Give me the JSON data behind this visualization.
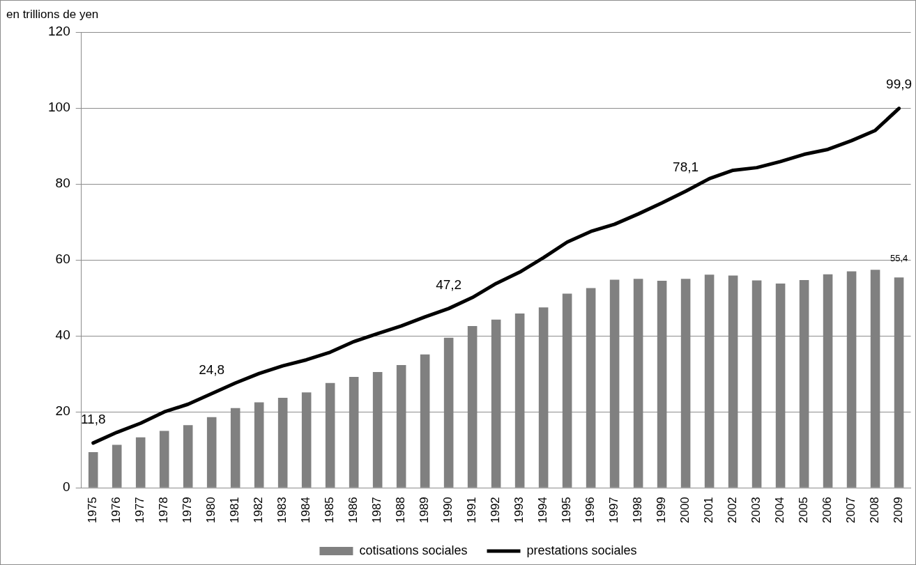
{
  "chart_data": {
    "type": "bar",
    "ylabel": "en trillions de yen",
    "categories": [
      "1975",
      "1976",
      "1977",
      "1978",
      "1979",
      "1980",
      "1981",
      "1982",
      "1983",
      "1984",
      "1985",
      "1986",
      "1987",
      "1988",
      "1989",
      "1990",
      "1991",
      "1992",
      "1993",
      "1994",
      "1995",
      "1996",
      "1997",
      "1998",
      "1999",
      "2000",
      "2001",
      "2002",
      "2003",
      "2004",
      "2005",
      "2006",
      "2007",
      "2008",
      "2009"
    ],
    "series": [
      {
        "name": "cotisations sociales",
        "color": "#808080",
        "values": [
          9.4,
          11.3,
          13.3,
          15.0,
          16.5,
          18.6,
          21.0,
          22.5,
          23.7,
          25.1,
          27.6,
          29.2,
          30.5,
          32.3,
          35.1,
          39.5,
          42.6,
          44.3,
          45.9,
          47.5,
          51.1,
          52.6,
          54.8,
          55.0,
          54.5,
          55.0,
          56.1,
          55.9,
          54.6,
          53.8,
          54.7,
          56.2,
          57.0,
          57.4,
          55.4
        ],
        "value_labels": [
          null,
          null,
          null,
          null,
          null,
          null,
          null,
          null,
          null,
          null,
          null,
          null,
          null,
          null,
          null,
          null,
          null,
          null,
          null,
          null,
          null,
          null,
          null,
          null,
          null,
          null,
          null,
          null,
          null,
          null,
          null,
          null,
          null,
          null,
          "55,4"
        ]
      },
      {
        "name": "prestations sociales",
        "type": "line",
        "color": "#000000",
        "values": [
          11.8,
          14.6,
          17.0,
          20.0,
          22.0,
          24.8,
          27.6,
          30.1,
          32.1,
          33.7,
          35.7,
          38.5,
          40.6,
          42.6,
          45.0,
          47.2,
          50.1,
          53.8,
          56.8,
          60.6,
          64.7,
          67.5,
          69.4,
          72.1,
          75.0,
          78.1,
          81.4,
          83.6,
          84.3,
          85.9,
          87.8,
          89.1,
          91.4,
          94.1,
          99.9
        ],
        "value_labels": [
          "11,8",
          null,
          null,
          null,
          null,
          "24,8",
          null,
          null,
          null,
          null,
          null,
          null,
          null,
          null,
          null,
          "47,2",
          null,
          null,
          null,
          null,
          null,
          null,
          null,
          null,
          null,
          "78,1",
          null,
          null,
          null,
          null,
          null,
          null,
          null,
          null,
          "99,9"
        ]
      }
    ],
    "ylim": [
      0,
      120
    ],
    "yticks": [
      0,
      20,
      40,
      60,
      80,
      100,
      120
    ],
    "grid": "y",
    "legend": "bottom",
    "marker": "none"
  }
}
